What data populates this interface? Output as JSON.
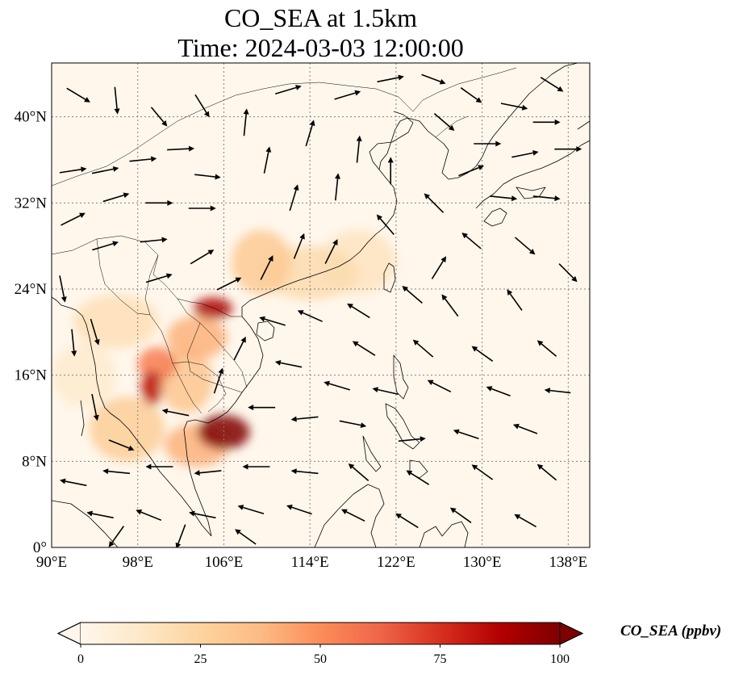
{
  "figure": {
    "title_line1": "CO_SEA at 1.5km",
    "title_line2": "Time: 2024-03-03 12:00:00"
  },
  "map": {
    "projection": "PlateCarree",
    "lon_range": [
      90,
      140
    ],
    "lat_range": [
      0,
      45
    ],
    "gridlines": true,
    "x_ticks": [
      {
        "value": 90,
        "label": "90°E"
      },
      {
        "value": 98,
        "label": "98°E"
      },
      {
        "value": 106,
        "label": "106°E"
      },
      {
        "value": 114,
        "label": "114°E"
      },
      {
        "value": 122,
        "label": "122°E"
      },
      {
        "value": 130,
        "label": "130°E"
      },
      {
        "value": 138,
        "label": "138°E"
      }
    ],
    "y_ticks": [
      {
        "value": 0,
        "label": "0°"
      },
      {
        "value": 8,
        "label": "8°N"
      },
      {
        "value": 16,
        "label": "16°N"
      },
      {
        "value": 24,
        "label": "24°N"
      },
      {
        "value": 32,
        "label": "32°N"
      },
      {
        "value": 40,
        "label": "40°N"
      }
    ],
    "colors": {
      "ocean_background": "#fff7ec",
      "coastline": "#000000",
      "gridline": "#808080",
      "wind_vector": "#000000"
    },
    "hotspots": [
      {
        "lon": 106.0,
        "lat": 10.7,
        "rx_deg": 2.4,
        "ry_deg": 1.6,
        "value": 100
      },
      {
        "lon": 105.0,
        "lat": 22.2,
        "rx_deg": 1.8,
        "ry_deg": 1.0,
        "value": 90
      },
      {
        "lon": 99.3,
        "lat": 14.8,
        "rx_deg": 1.0,
        "ry_deg": 1.6,
        "value": 85
      },
      {
        "lon": 99.8,
        "lat": 17.0,
        "rx_deg": 1.8,
        "ry_deg": 1.6,
        "value": 55
      },
      {
        "lon": 103.5,
        "lat": 19.5,
        "rx_deg": 2.8,
        "ry_deg": 2.0,
        "value": 40
      },
      {
        "lon": 102.5,
        "lat": 15.5,
        "rx_deg": 2.5,
        "ry_deg": 3.0,
        "value": 32
      },
      {
        "lon": 97.0,
        "lat": 11.0,
        "rx_deg": 3.5,
        "ry_deg": 3.0,
        "value": 28
      },
      {
        "lon": 103.5,
        "lat": 9.5,
        "rx_deg": 3.0,
        "ry_deg": 2.0,
        "value": 40
      },
      {
        "lon": 109.5,
        "lat": 26.5,
        "rx_deg": 2.8,
        "ry_deg": 3.0,
        "value": 30
      },
      {
        "lon": 114.0,
        "lat": 25.5,
        "rx_deg": 4.5,
        "ry_deg": 2.5,
        "value": 20
      },
      {
        "lon": 118.5,
        "lat": 26.5,
        "rx_deg": 3.5,
        "ry_deg": 3.0,
        "value": 15
      },
      {
        "lon": 96.0,
        "lat": 21.0,
        "rx_deg": 4.0,
        "ry_deg": 2.5,
        "value": 18
      },
      {
        "lon": 93.0,
        "lat": 16.0,
        "rx_deg": 3.0,
        "ry_deg": 3.0,
        "value": 10
      }
    ],
    "wind_vectors": [
      {
        "lon": 92.0,
        "lat": 35.0,
        "u": 1.0,
        "v": 0.15
      },
      {
        "lon": 95.0,
        "lat": 35.0,
        "u": 1.0,
        "v": 0.2
      },
      {
        "lon": 98.5,
        "lat": 36.0,
        "u": 1.0,
        "v": 0.1
      },
      {
        "lon": 102.0,
        "lat": 37.0,
        "u": 1.0,
        "v": 0.05
      },
      {
        "lon": 104.5,
        "lat": 34.5,
        "u": 0.9,
        "v": -0.1
      },
      {
        "lon": 92.0,
        "lat": 30.5,
        "u": 1.0,
        "v": 0.5
      },
      {
        "lon": 96.0,
        "lat": 32.5,
        "u": 1.0,
        "v": 0.3
      },
      {
        "lon": 100.0,
        "lat": 32.0,
        "u": 1.0,
        "v": 0.0
      },
      {
        "lon": 104.0,
        "lat": 31.5,
        "u": 1.0,
        "v": 0.0
      },
      {
        "lon": 95.0,
        "lat": 28.0,
        "u": 1.0,
        "v": 0.3
      },
      {
        "lon": 99.5,
        "lat": 28.5,
        "u": 1.0,
        "v": 0.1
      },
      {
        "lon": 104.0,
        "lat": 27.0,
        "u": 1.0,
        "v": 0.6
      },
      {
        "lon": 100.0,
        "lat": 25.0,
        "u": 1.0,
        "v": 0.3
      },
      {
        "lon": 106.5,
        "lat": 24.5,
        "u": 1.0,
        "v": 0.5
      },
      {
        "lon": 110.0,
        "lat": 26.0,
        "u": 0.5,
        "v": 1.0
      },
      {
        "lon": 113.0,
        "lat": 28.0,
        "u": 0.4,
        "v": 1.0
      },
      {
        "lon": 116.0,
        "lat": 27.5,
        "u": 0.5,
        "v": 1.0
      },
      {
        "lon": 112.5,
        "lat": 32.5,
        "u": 0.3,
        "v": 1.0
      },
      {
        "lon": 116.5,
        "lat": 33.5,
        "u": 0.1,
        "v": 1.0
      },
      {
        "lon": 110.0,
        "lat": 36.0,
        "u": 0.2,
        "v": 1.0
      },
      {
        "lon": 114.0,
        "lat": 38.5,
        "u": 0.3,
        "v": 1.0
      },
      {
        "lon": 108.0,
        "lat": 39.5,
        "u": 0.1,
        "v": 1.0
      },
      {
        "lon": 112.0,
        "lat": 42.5,
        "u": 1.0,
        "v": 0.3
      },
      {
        "lon": 117.5,
        "lat": 42.0,
        "u": 1.0,
        "v": 0.3
      },
      {
        "lon": 121.5,
        "lat": 43.5,
        "u": 1.0,
        "v": 0.2
      },
      {
        "lon": 125.5,
        "lat": 43.5,
        "u": 0.8,
        "v": -0.3
      },
      {
        "lon": 129.0,
        "lat": 42.0,
        "u": 0.7,
        "v": -0.5
      },
      {
        "lon": 133.0,
        "lat": 41.0,
        "u": 1.0,
        "v": -0.2
      },
      {
        "lon": 136.5,
        "lat": 43.0,
        "u": 0.8,
        "v": -0.5
      },
      {
        "lon": 126.5,
        "lat": 39.5,
        "u": 0.7,
        "v": -0.6
      },
      {
        "lon": 130.5,
        "lat": 37.5,
        "u": 1.0,
        "v": 0.0
      },
      {
        "lon": 134.0,
        "lat": 36.5,
        "u": 1.0,
        "v": 0.2
      },
      {
        "lon": 138.0,
        "lat": 37.0,
        "u": 1.0,
        "v": 0.0
      },
      {
        "lon": 129.0,
        "lat": 35.0,
        "u": 1.0,
        "v": 0.4
      },
      {
        "lon": 132.0,
        "lat": 32.5,
        "u": 1.0,
        "v": -0.1
      },
      {
        "lon": 136.0,
        "lat": 32.5,
        "u": 1.0,
        "v": -0.1
      },
      {
        "lon": 121.5,
        "lat": 35.0,
        "u": 0.0,
        "v": 1.0
      },
      {
        "lon": 118.5,
        "lat": 37.0,
        "u": 0.1,
        "v": 1.0
      },
      {
        "lon": 125.5,
        "lat": 32.0,
        "u": -0.7,
        "v": 0.7
      },
      {
        "lon": 129.0,
        "lat": 28.5,
        "u": -0.6,
        "v": 0.5
      },
      {
        "lon": 134.0,
        "lat": 28.0,
        "u": 0.7,
        "v": -0.6
      },
      {
        "lon": 121.0,
        "lat": 30.0,
        "u": -0.6,
        "v": 0.7
      },
      {
        "lon": 118.5,
        "lat": 22.0,
        "u": -0.8,
        "v": 0.5
      },
      {
        "lon": 123.5,
        "lat": 23.5,
        "u": -0.7,
        "v": 0.6
      },
      {
        "lon": 127.0,
        "lat": 22.5,
        "u": -0.6,
        "v": 0.8
      },
      {
        "lon": 133.0,
        "lat": 23.0,
        "u": -0.5,
        "v": 0.7
      },
      {
        "lon": 114.0,
        "lat": 21.5,
        "u": -0.9,
        "v": 0.4
      },
      {
        "lon": 110.5,
        "lat": 21.0,
        "u": -1.0,
        "v": 0.3
      },
      {
        "lon": 119.0,
        "lat": 18.5,
        "u": -0.8,
        "v": 0.5
      },
      {
        "lon": 124.5,
        "lat": 18.5,
        "u": -0.7,
        "v": 0.6
      },
      {
        "lon": 130.0,
        "lat": 18.0,
        "u": -0.7,
        "v": 0.5
      },
      {
        "lon": 136.0,
        "lat": 18.5,
        "u": -0.6,
        "v": 0.5
      },
      {
        "lon": 112.0,
        "lat": 17.0,
        "u": -1.0,
        "v": 0.2
      },
      {
        "lon": 116.5,
        "lat": 15.0,
        "u": -1.0,
        "v": 0.3
      },
      {
        "lon": 121.0,
        "lat": 14.5,
        "u": -0.9,
        "v": 0.2
      },
      {
        "lon": 126.0,
        "lat": 15.0,
        "u": -0.8,
        "v": 0.4
      },
      {
        "lon": 131.5,
        "lat": 14.5,
        "u": -0.8,
        "v": 0.3
      },
      {
        "lon": 137.0,
        "lat": 14.5,
        "u": -0.9,
        "v": 0.1
      },
      {
        "lon": 109.5,
        "lat": 13.0,
        "u": -1.0,
        "v": 0.0
      },
      {
        "lon": 113.5,
        "lat": 12.0,
        "u": -1.0,
        "v": -0.1
      },
      {
        "lon": 118.0,
        "lat": 11.5,
        "u": 1.0,
        "v": -0.2
      },
      {
        "lon": 123.5,
        "lat": 10.0,
        "u": 1.0,
        "v": 0.1
      },
      {
        "lon": 128.5,
        "lat": 10.5,
        "u": -0.9,
        "v": 0.3
      },
      {
        "lon": 134.0,
        "lat": 11.0,
        "u": -0.8,
        "v": 0.3
      },
      {
        "lon": 94.0,
        "lat": 13.0,
        "u": 0.2,
        "v": -1.0
      },
      {
        "lon": 96.5,
        "lat": 9.5,
        "u": 1.0,
        "v": -0.4
      },
      {
        "lon": 100.0,
        "lat": 7.5,
        "u": -1.0,
        "v": 0.0
      },
      {
        "lon": 96.0,
        "lat": 7.0,
        "u": -1.0,
        "v": 0.1
      },
      {
        "lon": 92.0,
        "lat": 6.0,
        "u": -1.0,
        "v": 0.2
      },
      {
        "lon": 104.5,
        "lat": 7.0,
        "u": -1.0,
        "v": -0.1
      },
      {
        "lon": 109.0,
        "lat": 7.5,
        "u": -1.0,
        "v": 0.0
      },
      {
        "lon": 113.5,
        "lat": 7.0,
        "u": -1.0,
        "v": 0.1
      },
      {
        "lon": 118.5,
        "lat": 7.0,
        "u": -0.7,
        "v": 0.6
      },
      {
        "lon": 124.0,
        "lat": 6.5,
        "u": -0.8,
        "v": 0.5
      },
      {
        "lon": 130.0,
        "lat": 7.0,
        "u": -0.7,
        "v": 0.5
      },
      {
        "lon": 136.0,
        "lat": 7.0,
        "u": -0.6,
        "v": 0.5
      },
      {
        "lon": 94.5,
        "lat": 3.0,
        "u": -1.0,
        "v": 0.2
      },
      {
        "lon": 99.0,
        "lat": 3.0,
        "u": -1.0,
        "v": 0.4
      },
      {
        "lon": 104.0,
        "lat": 3.0,
        "u": -1.0,
        "v": 0.2
      },
      {
        "lon": 108.5,
        "lat": 3.5,
        "u": -1.0,
        "v": 0.3
      },
      {
        "lon": 113.0,
        "lat": 3.5,
        "u": -0.9,
        "v": 0.3
      },
      {
        "lon": 118.0,
        "lat": 3.0,
        "u": -0.8,
        "v": 0.4
      },
      {
        "lon": 123.0,
        "lat": 2.5,
        "u": -0.8,
        "v": 0.5
      },
      {
        "lon": 128.0,
        "lat": 3.0,
        "u": -0.7,
        "v": 0.5
      },
      {
        "lon": 134.0,
        "lat": 2.5,
        "u": -0.7,
        "v": 0.4
      },
      {
        "lon": 96.0,
        "lat": 1.0,
        "u": -0.5,
        "v": -0.7
      },
      {
        "lon": 102.0,
        "lat": 1.0,
        "u": -0.3,
        "v": -0.8
      },
      {
        "lon": 108.0,
        "lat": 1.0,
        "u": -0.7,
        "v": 0.5
      },
      {
        "lon": 94.0,
        "lat": 20.0,
        "u": 0.3,
        "v": -1.0
      },
      {
        "lon": 91.0,
        "lat": 24.0,
        "u": 0.2,
        "v": -1.0
      },
      {
        "lon": 92.0,
        "lat": 19.0,
        "u": 0.1,
        "v": -1.0
      },
      {
        "lon": 105.5,
        "lat": 15.5,
        "u": 0.3,
        "v": 0.9
      },
      {
        "lon": 107.5,
        "lat": 18.5,
        "u": 0.4,
        "v": 0.8
      },
      {
        "lon": 101.5,
        "lat": 12.5,
        "u": -1.0,
        "v": 0.2
      },
      {
        "lon": 126.0,
        "lat": 26.0,
        "u": 0.5,
        "v": 0.8
      },
      {
        "lon": 138.0,
        "lat": 25.5,
        "u": 0.6,
        "v": -0.6
      },
      {
        "lon": 136.0,
        "lat": 39.5,
        "u": 1.0,
        "v": 0.0
      },
      {
        "lon": 92.5,
        "lat": 42.0,
        "u": 1.0,
        "v": -0.6
      },
      {
        "lon": 96.0,
        "lat": 41.5,
        "u": 0.1,
        "v": -1.0
      },
      {
        "lon": 100.0,
        "lat": 40.0,
        "u": 0.5,
        "v": -0.6
      },
      {
        "lon": 104.0,
        "lat": 41.0,
        "u": 0.5,
        "v": -0.8
      }
    ]
  },
  "colorbar": {
    "label": "CO_SEA (ppbv)",
    "min": 0,
    "max": 100,
    "extend": "both",
    "cmap": "OrRd",
    "ticks": [
      {
        "value": 0,
        "label": "0"
      },
      {
        "value": 25,
        "label": "25"
      },
      {
        "value": 50,
        "label": "50"
      },
      {
        "value": 75,
        "label": "75"
      },
      {
        "value": 100,
        "label": "100"
      }
    ],
    "stops": [
      {
        "value": 0,
        "color": "#fff7ec"
      },
      {
        "value": 12.5,
        "color": "#fee8c8"
      },
      {
        "value": 25,
        "color": "#fdd49e"
      },
      {
        "value": 37.5,
        "color": "#fdbb84"
      },
      {
        "value": 50,
        "color": "#fc8d59"
      },
      {
        "value": 62.5,
        "color": "#ef6548"
      },
      {
        "value": 75,
        "color": "#d7301f"
      },
      {
        "value": 87.5,
        "color": "#b30000"
      },
      {
        "value": 100,
        "color": "#7f0000"
      }
    ]
  }
}
